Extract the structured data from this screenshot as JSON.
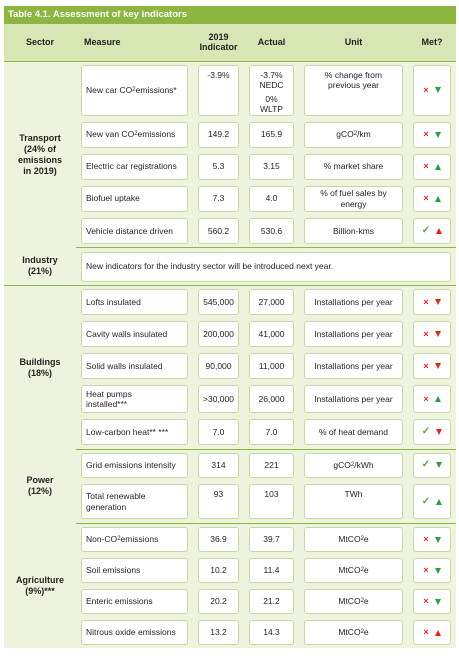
{
  "title": "Table 4.1. Assessment of key indicators",
  "headers": {
    "sector": "Sector",
    "measure": "Measure",
    "indicator_line1": "2019",
    "indicator_line2": "Indicator",
    "actual": "Actual",
    "unit": "Unit",
    "met": "Met?"
  },
  "colors": {
    "header_bg": "#8cb63f",
    "row_bg": "#eef3de",
    "cross": "#e2231a",
    "check": "#5aa03a",
    "arrow_green": "#2e9d4a",
    "arrow_red": "#e2231a"
  },
  "transport": {
    "sector_line1": "Transport",
    "sector_line2": "(24% of",
    "sector_line3": "emissions",
    "sector_line4": "in 2019)",
    "rows": [
      {
        "measure_pre": "New car CO",
        "measure_sub": "2",
        "measure_post": " emissions*",
        "indicator": "-3.9%",
        "actual_line1": "-3.7%",
        "actual_line2": "NEDC",
        "actual_line3": "0% WLTP",
        "unit": "% change from previous year",
        "met": "cross",
        "arrow": "down",
        "arrow_color": "green"
      },
      {
        "measure_pre": "New van CO",
        "measure_sub": "2",
        "measure_post": "emissions",
        "indicator": "149.2",
        "actual": "165.9",
        "unit_pre": "gCO",
        "unit_sub": "2",
        "unit_post": "/km",
        "met": "cross",
        "arrow": "down",
        "arrow_color": "green"
      },
      {
        "measure": "Electric car registrations",
        "indicator": "5.3",
        "actual": "3.15",
        "unit": "% market share",
        "met": "cross",
        "arrow": "up",
        "arrow_color": "green"
      },
      {
        "measure": "Biofuel uptake",
        "indicator": "7.3",
        "actual": "4.0",
        "unit": "% of fuel sales by energy",
        "met": "cross",
        "arrow": "up",
        "arrow_color": "green"
      },
      {
        "measure": "Vehicle distance driven",
        "indicator": "560.2",
        "actual": "530.6",
        "unit": "Billion-kms",
        "met": "check",
        "arrow": "up",
        "arrow_color": "red"
      }
    ]
  },
  "industry": {
    "sector_line1": "Industry",
    "sector_line2": "(21%)",
    "note": "New indicators for the industry sector will be introduced next year."
  },
  "buildings": {
    "sector_line1": "Buildings",
    "sector_line2": "(18%)",
    "rows": [
      {
        "measure": "Lofts insulated",
        "indicator": "545,000",
        "actual": "27,000",
        "unit": "Installations per year",
        "met": "cross",
        "arrow": "down",
        "arrow_color": "red"
      },
      {
        "measure": "Cavity walls insulated",
        "indicator": "200,000",
        "actual": "41,000",
        "unit": "Installations per year",
        "met": "cross",
        "arrow": "down",
        "arrow_color": "red"
      },
      {
        "measure": "Solid walls insulated",
        "indicator": "90,000",
        "actual": "11,000",
        "unit": "Installations per year",
        "met": "cross",
        "arrow": "down",
        "arrow_color": "red"
      },
      {
        "measure_line1": "Heat pumps",
        "measure_line2": "installed***",
        "indicator": ">30,000",
        "actual": "26,000",
        "unit": "Installations per year",
        "met": "cross",
        "arrow": "up",
        "arrow_color": "green"
      },
      {
        "measure": "Low-carbon heat** ***",
        "indicator": "7.0",
        "actual": "7.0",
        "unit": "% of heat demand",
        "met": "check",
        "arrow": "down",
        "arrow_color": "red"
      }
    ]
  },
  "power": {
    "sector_line1": "Power",
    "sector_line2": "(12%)",
    "rows": [
      {
        "measure": "Grid emissions intensity",
        "indicator": "314",
        "actual": "221",
        "unit_pre": "gCO",
        "unit_sub": "2",
        "unit_post": "/kWh",
        "met": "check",
        "arrow": "down",
        "arrow_color": "green"
      },
      {
        "measure_line1": "Total renewable",
        "measure_line2": "generation",
        "indicator": "93",
        "actual": "103",
        "unit": "TWh",
        "met": "check",
        "arrow": "up",
        "arrow_color": "green"
      }
    ]
  },
  "agriculture": {
    "sector_line1": "Agriculture",
    "sector_line2": "(9%)***",
    "rows": [
      {
        "measure_pre": "Non-CO",
        "measure_sub": "2",
        "measure_post": " emissions",
        "indicator": "36.9",
        "actual": "39.7",
        "unit_pre": "MtCO",
        "unit_sub": "2",
        "unit_post": "e",
        "met": "cross",
        "arrow": "down",
        "arrow_color": "green"
      },
      {
        "measure": "Soil emissions",
        "indicator": "10.2",
        "actual": "11.4",
        "unit_pre": "MtCO",
        "unit_sub": "2",
        "unit_post": "e",
        "met": "cross",
        "arrow": "down",
        "arrow_color": "green"
      },
      {
        "measure": "Enteric emissions",
        "indicator": "20.2",
        "actual": "21.2",
        "unit_pre": "MtCO",
        "unit_sub": "2",
        "unit_post": "e",
        "met": "cross",
        "arrow": "down",
        "arrow_color": "green"
      },
      {
        "measure": "Nitrous oxide emissions",
        "indicator": "13.2",
        "actual": "14.3",
        "unit_pre": "MtCO",
        "unit_sub": "2",
        "unit_post": "e",
        "met": "cross",
        "arrow": "up",
        "arrow_color": "red"
      }
    ]
  }
}
